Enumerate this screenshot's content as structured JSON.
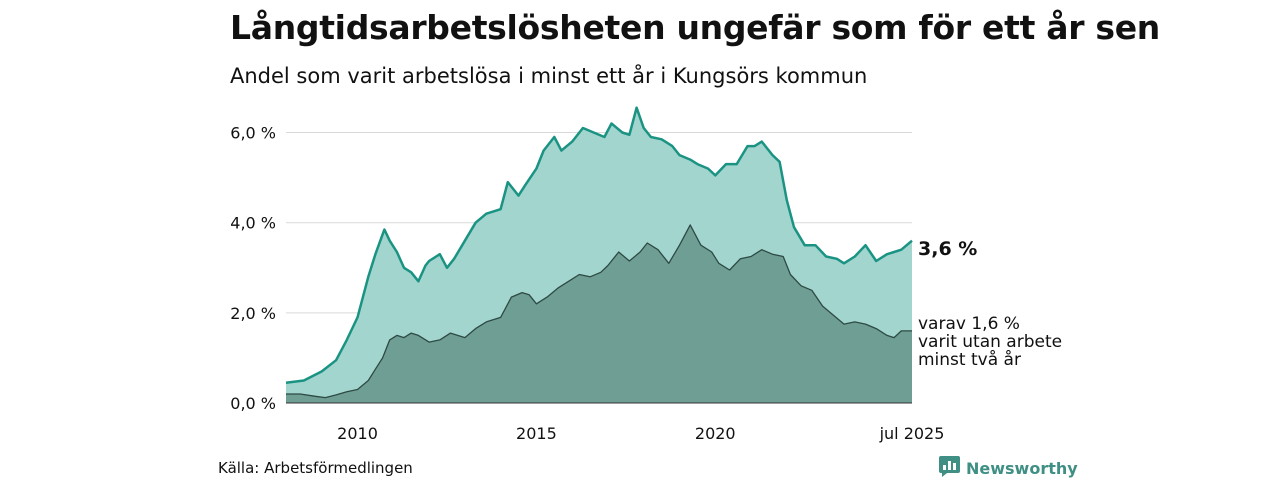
{
  "title": "Långtidsarbetslösheten ungefär som för ett år sen",
  "subtitle": "Andel som varit arbetslösa i minst ett år i Kungsörs kommun",
  "source": "Källa: Arbetsförmedlingen",
  "brand": {
    "name": "Newsworthy",
    "icon": "newsworthy-logo-icon"
  },
  "colors": {
    "total_fill": "#a3d5cf",
    "total_line": "#1b9383",
    "longterm_fill": "#6f9e95",
    "longterm_line": "#2d4a44",
    "grid": "#d9d9d9"
  },
  "labels": {
    "end_value": "3,6 %",
    "sub_line1": "varav 1,6 %",
    "sub_line2": "varit utan arbete",
    "sub_line3": "minst två år"
  },
  "chart_data": {
    "type": "area",
    "x_ticks": [
      {
        "x": 2010,
        "label": "2010"
      },
      {
        "x": 2015,
        "label": "2015"
      },
      {
        "x": 2020,
        "label": "2020"
      },
      {
        "x": 2025.5,
        "label": "jul 2025"
      }
    ],
    "y_ticks": [
      {
        "y": 0,
        "label": "0,0 %"
      },
      {
        "y": 2,
        "label": "2,0 %"
      },
      {
        "y": 4,
        "label": "4,0 %"
      },
      {
        "y": 6,
        "label": "6,0 %"
      }
    ],
    "xlim": [
      2008.0,
      2025.5
    ],
    "ylim": [
      0,
      6.5
    ],
    "series": [
      {
        "x": [
          2008.0,
          2008.5,
          2009.0,
          2009.4,
          2009.7,
          2010.0,
          2010.3,
          2010.5,
          2010.75,
          2010.9,
          2011.1,
          2011.3,
          2011.5,
          2011.7,
          2011.9,
          2012.0,
          2012.3,
          2012.5,
          2012.7,
          2013.0,
          2013.3,
          2013.6,
          2014.0,
          2014.2,
          2014.5,
          2014.7,
          2015.0,
          2015.2,
          2015.5,
          2015.7,
          2016.0,
          2016.3,
          2016.6,
          2016.9,
          2017.1,
          2017.4,
          2017.6,
          2017.8,
          2018.0,
          2018.2,
          2018.5,
          2018.8,
          2019.0,
          2019.3,
          2019.5,
          2019.8,
          2020.0,
          2020.3,
          2020.6,
          2020.9,
          2021.1,
          2021.3,
          2021.6,
          2021.8,
          2022.0,
          2022.2,
          2022.5,
          2022.8,
          2023.1,
          2023.4,
          2023.6,
          2023.9,
          2024.2,
          2024.5,
          2024.8,
          2025.0,
          2025.2,
          2025.5
        ],
        "values": [
          0.45,
          0.5,
          0.7,
          0.95,
          1.4,
          1.9,
          2.8,
          3.3,
          3.85,
          3.6,
          3.35,
          3.0,
          2.9,
          2.7,
          3.05,
          3.15,
          3.3,
          3.0,
          3.2,
          3.6,
          4.0,
          4.2,
          4.3,
          4.9,
          4.6,
          4.85,
          5.2,
          5.6,
          5.9,
          5.6,
          5.8,
          6.1,
          6.0,
          5.9,
          6.2,
          6.0,
          5.95,
          6.55,
          6.1,
          5.9,
          5.85,
          5.7,
          5.5,
          5.4,
          5.3,
          5.2,
          5.05,
          5.3,
          5.3,
          5.7,
          5.7,
          5.8,
          5.5,
          5.35,
          4.5,
          3.9,
          3.5,
          3.5,
          3.25,
          3.2,
          3.1,
          3.25,
          3.5,
          3.15,
          3.3,
          3.35,
          3.4,
          3.6
        ]
      },
      {
        "x": [
          2008.0,
          2008.4,
          2008.8,
          2009.1,
          2009.4,
          2009.7,
          2010.0,
          2010.3,
          2010.5,
          2010.7,
          2010.9,
          2011.1,
          2011.3,
          2011.5,
          2011.7,
          2012.0,
          2012.3,
          2012.6,
          2013.0,
          2013.3,
          2013.6,
          2014.0,
          2014.3,
          2014.6,
          2014.8,
          2015.0,
          2015.3,
          2015.6,
          2015.9,
          2016.2,
          2016.5,
          2016.8,
          2017.0,
          2017.3,
          2017.6,
          2017.9,
          2018.1,
          2018.4,
          2018.7,
          2019.0,
          2019.3,
          2019.6,
          2019.9,
          2020.1,
          2020.4,
          2020.7,
          2021.0,
          2021.3,
          2021.6,
          2021.9,
          2022.1,
          2022.4,
          2022.7,
          2023.0,
          2023.3,
          2023.6,
          2023.9,
          2024.2,
          2024.5,
          2024.8,
          2025.0,
          2025.2,
          2025.5
        ],
        "values": [
          0.2,
          0.2,
          0.15,
          0.12,
          0.18,
          0.25,
          0.3,
          0.5,
          0.75,
          1.0,
          1.4,
          1.5,
          1.45,
          1.55,
          1.5,
          1.35,
          1.4,
          1.55,
          1.45,
          1.65,
          1.8,
          1.9,
          2.35,
          2.45,
          2.4,
          2.2,
          2.35,
          2.55,
          2.7,
          2.85,
          2.8,
          2.9,
          3.05,
          3.35,
          3.15,
          3.35,
          3.55,
          3.4,
          3.1,
          3.5,
          3.95,
          3.5,
          3.35,
          3.1,
          2.95,
          3.2,
          3.25,
          3.4,
          3.3,
          3.25,
          2.85,
          2.6,
          2.5,
          2.15,
          1.95,
          1.75,
          1.8,
          1.75,
          1.65,
          1.5,
          1.45,
          1.6,
          1.6
        ]
      }
    ]
  }
}
